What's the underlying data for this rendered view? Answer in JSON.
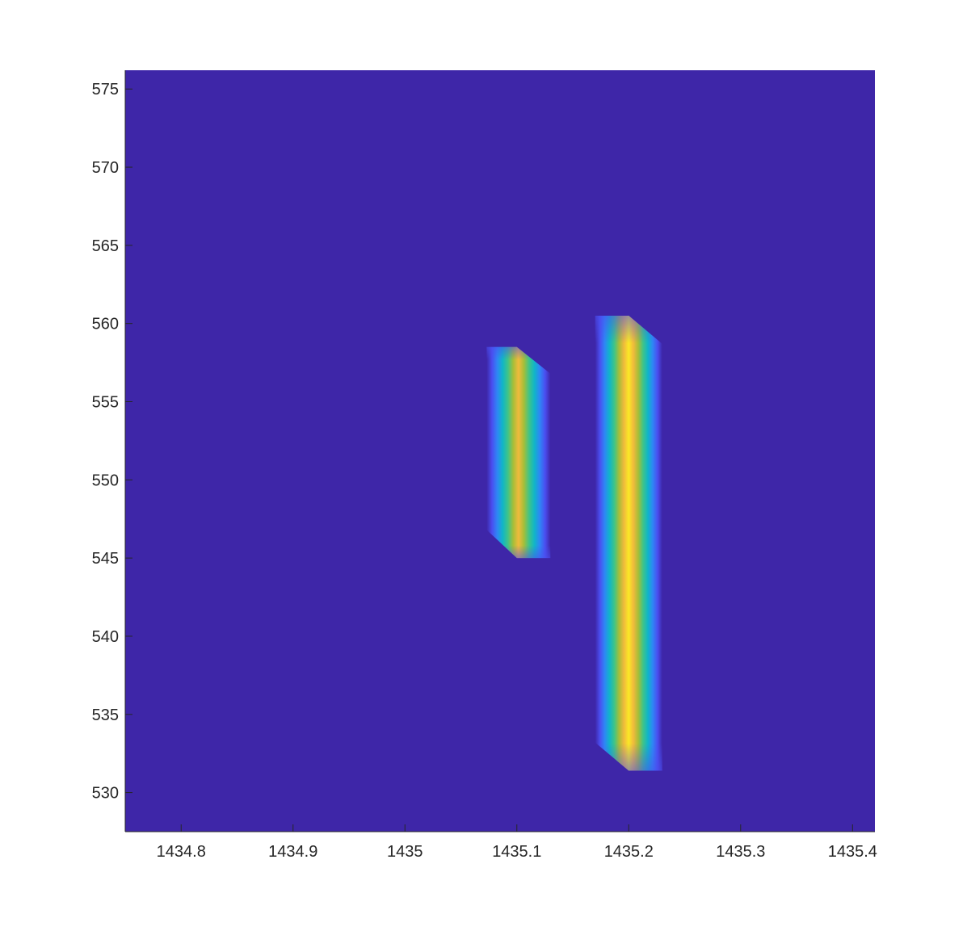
{
  "chart_data": {
    "type": "heatmap",
    "title": "",
    "xlabel": "",
    "ylabel": "",
    "xlim": [
      1434.75,
      1435.42
    ],
    "ylim": [
      527.5,
      576.2
    ],
    "x_ticks": [
      1434.8,
      1434.9,
      1435,
      1435.1,
      1435.2,
      1435.3,
      1435.4
    ],
    "x_tick_labels": [
      "1434.8",
      "1434.9",
      "1435",
      "1435.1",
      "1435.2",
      "1435.3",
      "1435.4"
    ],
    "y_ticks": [
      530,
      535,
      540,
      545,
      550,
      555,
      560,
      565,
      570,
      575
    ],
    "y_tick_labels": [
      "530",
      "535",
      "540",
      "545",
      "550",
      "555",
      "560",
      "565",
      "570",
      "575"
    ],
    "grid": false,
    "colorbar": false,
    "colormap": [
      "#3e26a8",
      "#4a4ef0",
      "#2e87f5",
      "#10b5c8",
      "#3fc488",
      "#a6be38",
      "#f0ba3c",
      "#fae925"
    ],
    "background_color": "#3e26a8",
    "features": [
      {
        "name": "",
        "x_center": 1435.1,
        "y_range": [
          545.0,
          558.5
        ],
        "outer_polygon": [
          [
            1435.073,
            558.5
          ],
          [
            1435.1,
            558.5
          ],
          [
            1435.13,
            556.8
          ],
          [
            1435.13,
            545.0
          ],
          [
            1435.1,
            545.0
          ],
          [
            1435.073,
            546.8
          ]
        ],
        "peak_value": 0.88
      },
      {
        "name": "",
        "x_center": 1435.2,
        "y_range": [
          531.4,
          560.5
        ],
        "outer_polygon": [
          [
            1435.17,
            560.5
          ],
          [
            1435.2,
            560.5
          ],
          [
            1435.23,
            558.7
          ],
          [
            1435.23,
            531.4
          ],
          [
            1435.2,
            531.4
          ],
          [
            1435.17,
            533.2
          ]
        ],
        "peak_value": 1.0
      }
    ]
  }
}
